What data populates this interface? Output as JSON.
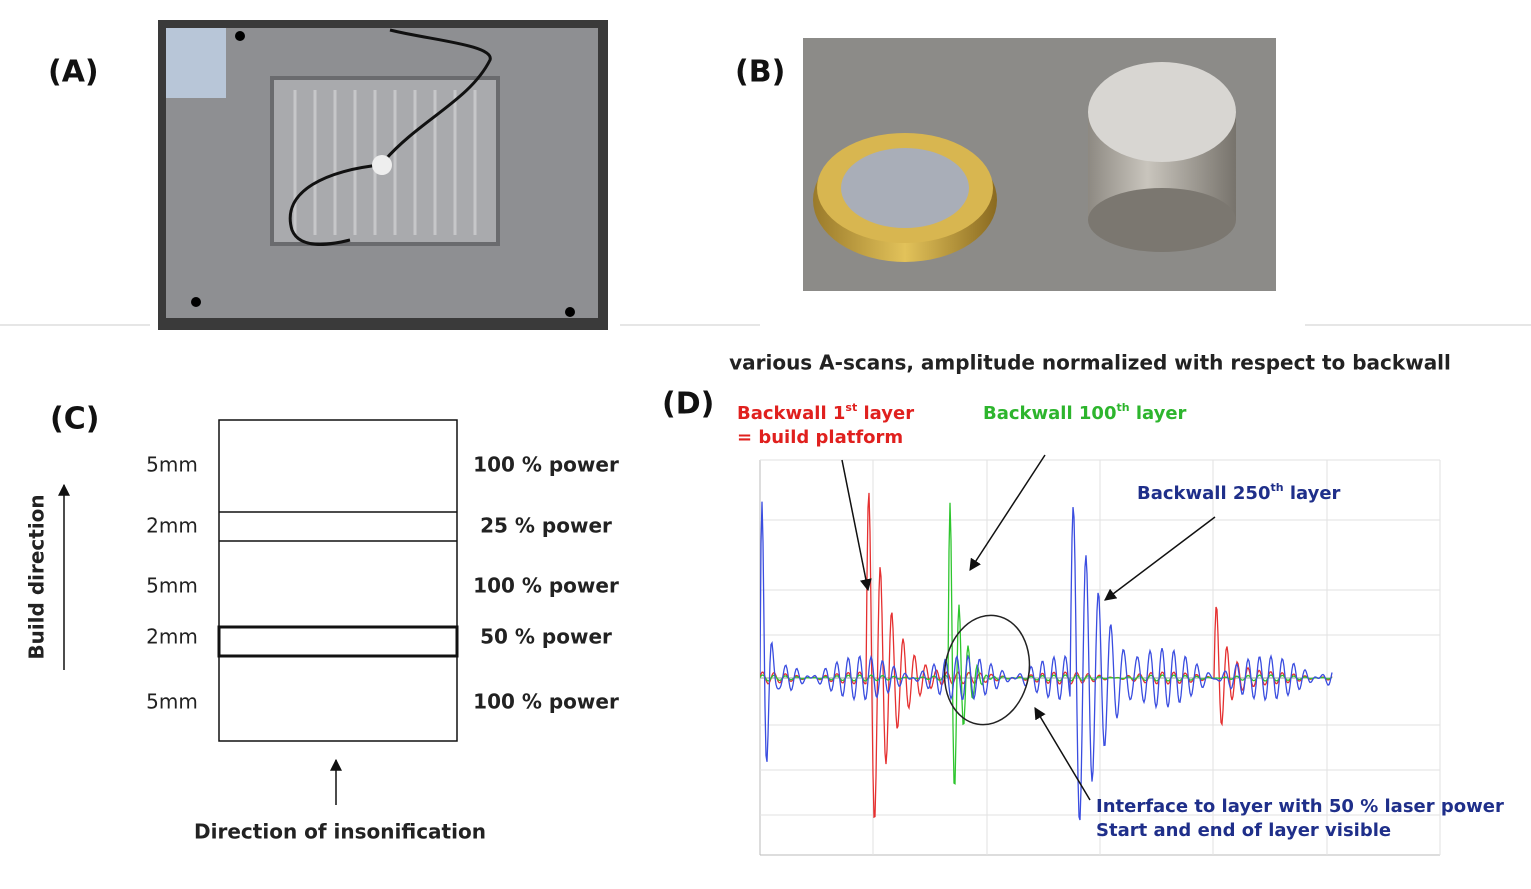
{
  "panels": {
    "a": {
      "label": "(A)"
    },
    "b": {
      "label": "(B)"
    },
    "c": {
      "label": "(C)",
      "axis_label": "Build direction",
      "layers": [
        {
          "thickness": "5mm",
          "power": "100 % power"
        },
        {
          "thickness": "2mm",
          "power": "25 % power"
        },
        {
          "thickness": "5mm",
          "power": "100 % power"
        },
        {
          "thickness": "2mm",
          "power": "50 % power"
        },
        {
          "thickness": "5mm",
          "power": "100 % power"
        }
      ],
      "footer": "Direction of insonification"
    },
    "d": {
      "label": "(D)",
      "title": "various A-scans, amplitude normalized with respect to backwall",
      "annotations": [
        {
          "color": "#e0201e",
          "lines": [
            [
              {
                "t": "Backwall 1"
              },
              {
                "t": "st",
                "sup": true
              },
              {
                "t": " layer"
              }
            ],
            [
              {
                "t": "= build platform"
              }
            ]
          ]
        },
        {
          "color": "#2db52d",
          "lines": [
            [
              {
                "t": "Backwall 100"
              },
              {
                "t": "th",
                "sup": true
              },
              {
                "t": " layer"
              }
            ]
          ]
        },
        {
          "color": "#1f2f8a",
          "lines": [
            [
              {
                "t": "Backwall 250"
              },
              {
                "t": "th",
                "sup": true
              },
              {
                "t": " layer"
              }
            ]
          ]
        },
        {
          "color": "#1f2f8a",
          "lines": [
            [
              {
                "t": "Interface to layer with 50 % laser power"
              }
            ],
            [
              {
                "t": "Start and end of layer visible"
              }
            ]
          ]
        }
      ]
    }
  }
}
